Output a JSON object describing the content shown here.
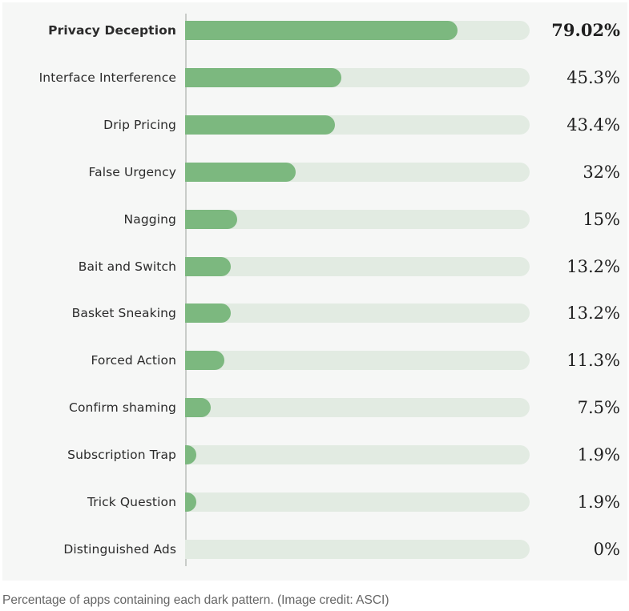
{
  "chart_data": {
    "type": "bar",
    "orientation": "horizontal",
    "categories": [
      "Privacy Deception",
      "Interface Interference",
      "Drip Pricing",
      "False Urgency",
      "Nagging",
      "Bait and Switch",
      "Basket Sneaking",
      "Forced Action",
      "Confirm shaming",
      "Subscription Trap",
      "Trick Question",
      "Distinguished Ads"
    ],
    "values": [
      79.02,
      45.3,
      43.4,
      32,
      15,
      13.2,
      13.2,
      11.3,
      7.5,
      1.9,
      1.9,
      0
    ],
    "value_labels": [
      "79.02%",
      "45.3%",
      "43.4%",
      "32%",
      "15%",
      "13.2%",
      "13.2%",
      "11.3%",
      "7.5%",
      "1.9%",
      "1.9%",
      "0%"
    ],
    "xlim": [
      0,
      100
    ],
    "grid": false,
    "legend": "none",
    "highlight_index": 0,
    "colors": {
      "bar": "#7cb87f",
      "track": "#e2ebe2",
      "panel": "#f6f7f6"
    }
  },
  "caption": "Percentage of apps containing each dark pattern. (Image credit: ASCI)"
}
